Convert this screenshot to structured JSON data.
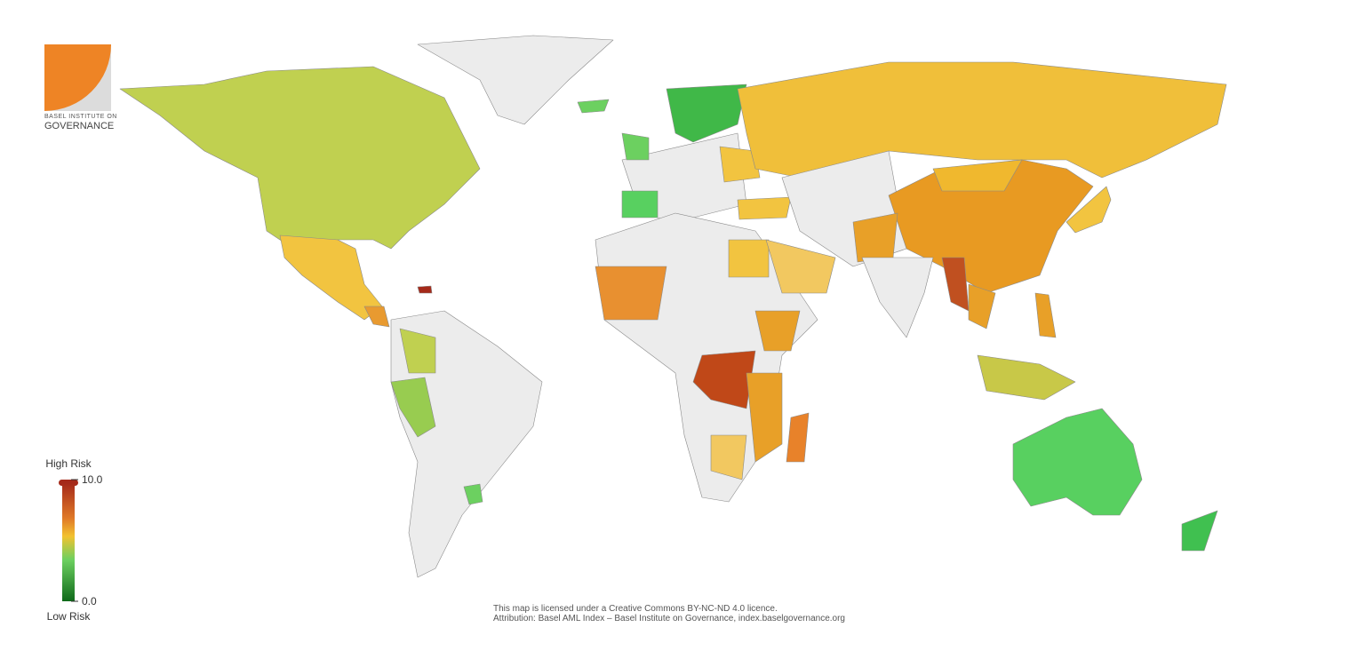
{
  "logo": {
    "line1": "BASEL INSTITUTE ON",
    "line2": "GOVERNANCE"
  },
  "legend": {
    "high_label": "High Risk",
    "low_label": "Low Risk",
    "scale": [
      {
        "value": 0,
        "label": "0.0"
      },
      {
        "value": 10,
        "label": "10.0"
      }
    ]
  },
  "footer": {
    "line1": "This map is licensed under a Creative Commons BY-NC-ND 4.0 licence.",
    "line2": "Attribution: Basel AML Index – Basel Institute on Governance, index.baselgovernance.org"
  }
}
